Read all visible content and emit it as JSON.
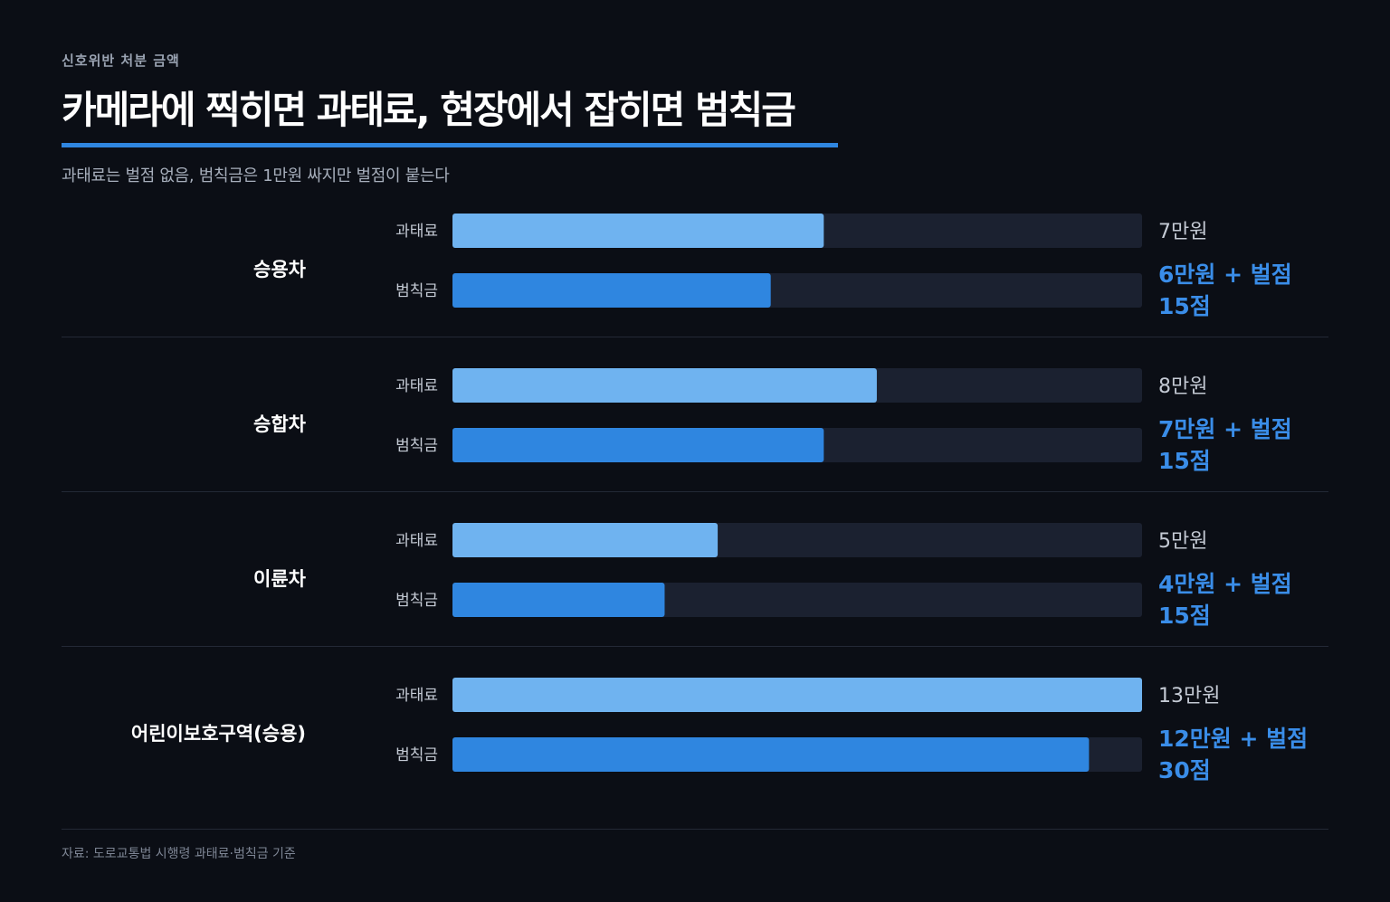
{
  "header": {
    "eyebrow": "신호위반 처분 금액",
    "title": "카메라에 찍히면 과태료, 현장에서 잡히면 범칙금",
    "subtitle": "과태료는 벌점 없음, 범칙금은 1만원 싸지만 벌점이 붙는다"
  },
  "footer": {
    "source": "자료: 도로교통법 시행령 과태료·범칙금 기준"
  },
  "colors": {
    "background": "#0b0e15",
    "track": "#1b2130",
    "fine_fee_bar": "#6fb3f0",
    "penalty_bar": "#2f86e0",
    "accent": "#3a8de8"
  },
  "chart_data": {
    "type": "bar",
    "orientation": "horizontal",
    "unit": "만원",
    "xlim": [
      0,
      13
    ],
    "categories": [
      "승용차",
      "승합차",
      "이륜차",
      "어린이보호구역(승용)"
    ],
    "series": [
      {
        "name": "과태료",
        "values": [
          7,
          8,
          5,
          13
        ],
        "labels": [
          [
            "7만원"
          ],
          [
            "8만원"
          ],
          [
            "5만원"
          ],
          [
            "13만원"
          ]
        ]
      },
      {
        "name": "범칙금",
        "values": [
          6,
          7,
          4,
          12
        ],
        "labels": [
          [
            "6만원 + 벌점",
            "15점"
          ],
          [
            "7만원 + 벌점",
            "15점"
          ],
          [
            "4만원 + 벌점",
            "15점"
          ],
          [
            "12만원 + 벌점",
            "30점"
          ]
        ]
      }
    ]
  }
}
